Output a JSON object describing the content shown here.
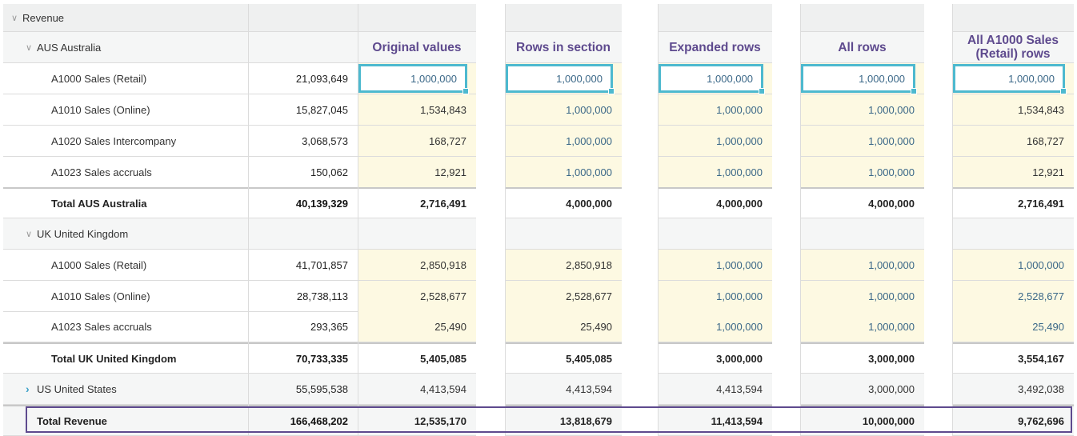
{
  "colors": {
    "selection": "#4db9cf",
    "header_text": "#5e4a8e",
    "changed_cell_bg": "#fdf9e2",
    "changed_text": "#3b6888",
    "frame": "#5e4a8e"
  },
  "tree": {
    "root_label": "Revenue",
    "groups": [
      {
        "code": "AUS",
        "name": "Australia",
        "expanded": true
      },
      {
        "code": "UK",
        "name": "United Kingdom",
        "expanded": true
      },
      {
        "code": "US",
        "name": "United States",
        "expanded": false
      }
    ]
  },
  "columns": [
    "Original values",
    "Rows in section",
    "Expanded rows",
    "All rows",
    "All A1000 Sales (Retail) rows"
  ],
  "rows": [
    {
      "type": "group",
      "label": "AUS  Australia",
      "base": "",
      "values": [
        "",
        "",
        "",
        "",
        ""
      ]
    },
    {
      "type": "item",
      "label": "A1000  Sales (Retail)",
      "base": "21,093,649",
      "values": [
        "1,000,000",
        "1,000,000",
        "1,000,000",
        "1,000,000",
        "1,000,000"
      ]
    },
    {
      "type": "item",
      "label": "A1010  Sales (Online)",
      "base": "15,827,045",
      "values": [
        "1,534,843",
        "1,000,000",
        "1,000,000",
        "1,000,000",
        "1,534,843"
      ]
    },
    {
      "type": "item",
      "label": "A1020  Sales Intercompany",
      "base": "3,068,573",
      "values": [
        "168,727",
        "1,000,000",
        "1,000,000",
        "1,000,000",
        "168,727"
      ]
    },
    {
      "type": "item",
      "label": "A1023  Sales accruals",
      "base": "150,062",
      "values": [
        "12,921",
        "1,000,000",
        "1,000,000",
        "1,000,000",
        "12,921"
      ]
    },
    {
      "type": "total",
      "label": "Total AUS Australia",
      "base": "40,139,329",
      "values": [
        "2,716,491",
        "4,000,000",
        "4,000,000",
        "4,000,000",
        "2,716,491"
      ]
    },
    {
      "type": "group",
      "label": "UK  United Kingdom",
      "base": "",
      "values": [
        "",
        "",
        "",
        "",
        ""
      ]
    },
    {
      "type": "item",
      "label": "A1000  Sales (Retail)",
      "base": "41,701,857",
      "values": [
        "2,850,918",
        "2,850,918",
        "1,000,000",
        "1,000,000",
        "1,000,000"
      ]
    },
    {
      "type": "item",
      "label": "A1010  Sales (Online)",
      "base": "28,738,113",
      "values": [
        "2,528,677",
        "2,528,677",
        "1,000,000",
        "1,000,000",
        "2,528,677"
      ]
    },
    {
      "type": "item",
      "label": "A1023  Sales accruals",
      "base": "293,365",
      "values": [
        "25,490",
        "25,490",
        "1,000,000",
        "1,000,000",
        "25,490"
      ]
    },
    {
      "type": "total",
      "label": "Total UK United Kingdom",
      "base": "70,733,335",
      "values": [
        "5,405,085",
        "5,405,085",
        "3,000,000",
        "3,000,000",
        "3,554,167"
      ]
    },
    {
      "type": "collapsed",
      "label": "US  United States",
      "base": "55,595,538",
      "values": [
        "4,413,594",
        "4,413,594",
        "4,413,594",
        "3,000,000",
        "3,492,038"
      ]
    },
    {
      "type": "grand",
      "label": "Total Revenue",
      "base": "166,468,202",
      "values": [
        "12,535,170",
        "13,818,679",
        "11,413,594",
        "10,000,000",
        "9,762,696"
      ]
    }
  ]
}
